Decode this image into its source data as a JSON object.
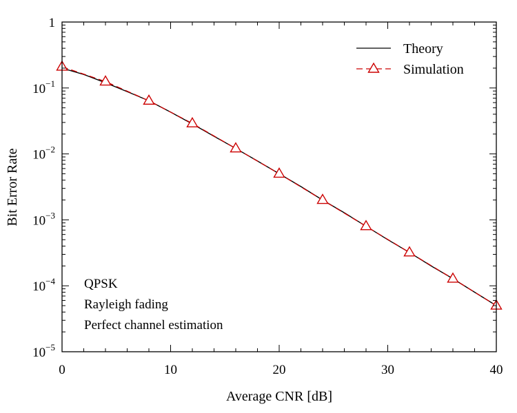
{
  "chart_data": {
    "type": "line",
    "xlabel": "Average CNR [dB]",
    "ylabel": "Bit Error Rate",
    "x_ticks": [
      0,
      10,
      20,
      30,
      40
    ],
    "xlim": [
      0,
      40
    ],
    "ylim": [
      1e-05,
      1
    ],
    "y_scale": "log",
    "y_ticks": [
      {
        "base": "1",
        "exp": ""
      },
      {
        "base": "10",
        "exp": "−1"
      },
      {
        "base": "10",
        "exp": "−2"
      },
      {
        "base": "10",
        "exp": "−3"
      },
      {
        "base": "10",
        "exp": "−4"
      },
      {
        "base": "10",
        "exp": "−5"
      }
    ],
    "y_tick_values": [
      1,
      0.1,
      0.01,
      0.001,
      0.0001,
      1e-05
    ],
    "grid": false,
    "legend_position": "top-right",
    "series": [
      {
        "name": "Theory",
        "color": "#000000",
        "style": "solid",
        "x": [
          0,
          2,
          4,
          6,
          8,
          10,
          12,
          14,
          16,
          18,
          20,
          22,
          24,
          26,
          28,
          30,
          32,
          34,
          36,
          38,
          40
        ],
        "y": [
          0.2,
          0.16,
          0.12,
          0.088,
          0.064,
          0.043,
          0.0285,
          0.0185,
          0.0121,
          0.0078,
          0.005,
          0.0032,
          0.002,
          0.00128,
          0.0008,
          0.0005,
          0.00032,
          0.0002,
          0.000128,
          8e-05,
          5e-05
        ]
      },
      {
        "name": "Simulation",
        "color": "#cc0000",
        "style": "dashed",
        "marker": "triangle-open",
        "x": [
          0,
          4,
          8,
          12,
          16,
          20,
          24,
          28,
          32,
          36,
          40
        ],
        "y": [
          0.21,
          0.125,
          0.064,
          0.029,
          0.0121,
          0.005,
          0.002,
          0.0008,
          0.00032,
          0.000128,
          5e-05
        ]
      }
    ],
    "annotations": [
      "QPSK",
      "Rayleigh fading",
      "Perfect channel estimation"
    ]
  }
}
